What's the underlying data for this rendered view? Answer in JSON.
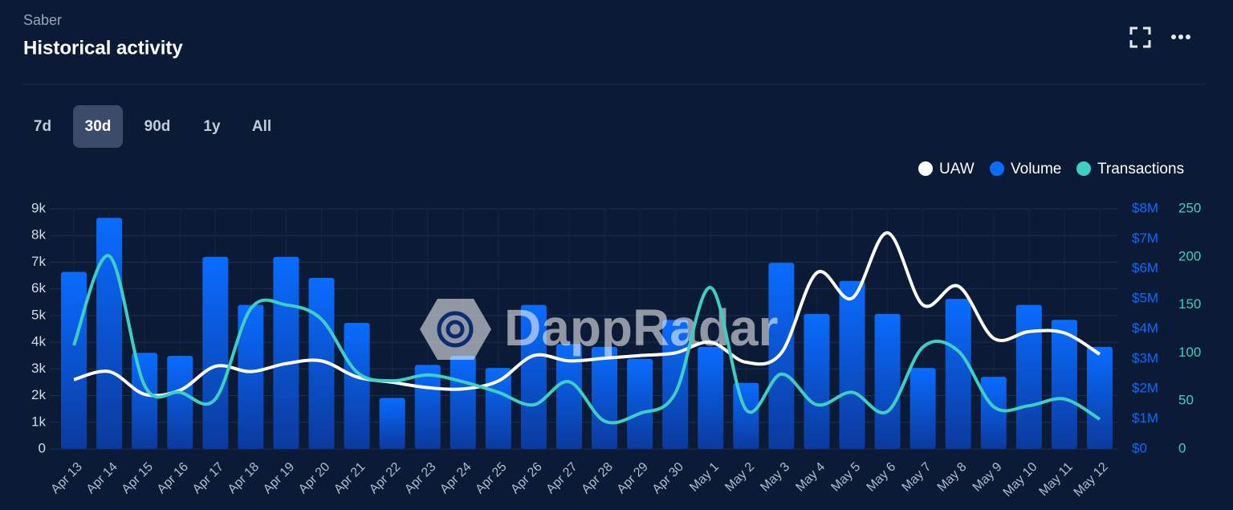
{
  "header": {
    "project": "Saber",
    "title": "Historical activity"
  },
  "tabs": [
    "7d",
    "30d",
    "90d",
    "1y",
    "All"
  ],
  "active_tab": 1,
  "watermark": "DappRadar",
  "chart_data": {
    "type": "combo",
    "categories": [
      "Apr 13",
      "Apr 14",
      "Apr 15",
      "Apr 16",
      "Apr 17",
      "Apr 18",
      "Apr 19",
      "Apr 20",
      "Apr 21",
      "Apr 22",
      "Apr 23",
      "Apr 24",
      "Apr 25",
      "Apr 26",
      "Apr 27",
      "Apr 28",
      "Apr 29",
      "Apr 30",
      "May 1",
      "May 2",
      "May 3",
      "May 4",
      "May 5",
      "May 6",
      "May 7",
      "May 8",
      "May 9",
      "May 10",
      "May 11",
      "May 12"
    ],
    "series": [
      {
        "name": "UAW",
        "type": "line",
        "axis": "y",
        "color": "#ffffff",
        "values": [
          2600,
          2900,
          2050,
          2200,
          3100,
          2900,
          3200,
          3300,
          2700,
          2500,
          2300,
          2250,
          2550,
          3500,
          3300,
          3400,
          3500,
          3600,
          4000,
          3250,
          3600,
          6600,
          5650,
          8100,
          5400,
          6100,
          4150,
          4400,
          4350,
          3550
        ]
      },
      {
        "name": "Volume",
        "type": "bar",
        "axis": "y2",
        "color": "#0a6cff",
        "values": [
          5900000,
          7700000,
          3200000,
          3100000,
          6400000,
          4800000,
          6400000,
          5700000,
          4200000,
          1700000,
          2800000,
          3100000,
          2700000,
          4800000,
          3500000,
          3400000,
          3000000,
          4300000,
          3400000,
          2200000,
          6200000,
          4500000,
          5600000,
          4500000,
          2700000,
          5000000,
          2400000,
          4800000,
          4300000,
          3400000
        ]
      },
      {
        "name": "Transactions",
        "type": "line",
        "axis": "y3",
        "color": "#3ecfc4",
        "values": [
          108,
          201,
          66,
          59,
          52,
          146,
          150,
          135,
          80,
          71,
          77,
          70,
          59,
          46,
          70,
          29,
          37,
          58,
          168,
          41,
          78,
          46,
          59,
          39,
          106,
          102,
          44,
          45,
          52,
          31
        ]
      }
    ],
    "ylim": [
      0,
      9000
    ],
    "yticks": [
      0,
      {
        "value": 1000,
        "label": "1k"
      },
      {
        "value": 2000,
        "label": "2k"
      },
      {
        "value": 3000,
        "label": "3k"
      },
      {
        "value": 4000,
        "label": "4k"
      },
      {
        "value": 5000,
        "label": "5k"
      },
      {
        "value": 6000,
        "label": "6k"
      },
      {
        "value": 7000,
        "label": "7k"
      },
      {
        "value": 8000,
        "label": "8k"
      },
      {
        "value": 9000,
        "label": "9k"
      }
    ],
    "y2lim": [
      0,
      8000000
    ],
    "y2ticks": [
      {
        "value": 0,
        "label": "$0"
      },
      {
        "value": 1000000,
        "label": "$1M"
      },
      {
        "value": 2000000,
        "label": "$2M"
      },
      {
        "value": 3000000,
        "label": "$3M"
      },
      {
        "value": 4000000,
        "label": "$4M"
      },
      {
        "value": 5000000,
        "label": "$5M"
      },
      {
        "value": 6000000,
        "label": "$6M"
      },
      {
        "value": 7000000,
        "label": "$7M"
      },
      {
        "value": 8000000,
        "label": "$8M"
      }
    ],
    "y3lim": [
      0,
      250
    ],
    "y3ticks": [
      0,
      50,
      100,
      150,
      200,
      250
    ],
    "grid": true,
    "legend": "top-right"
  }
}
